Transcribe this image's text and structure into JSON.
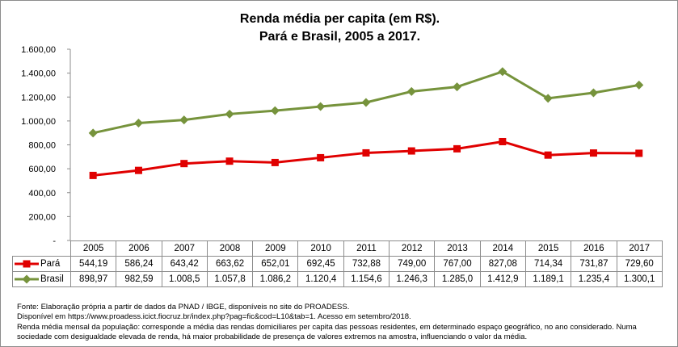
{
  "chart_data": {
    "type": "line",
    "title": [
      "Renda média per capita (em R$).",
      "Pará e Brasil, 2005 a 2017."
    ],
    "categories": [
      "2005",
      "2006",
      "2007",
      "2008",
      "2009",
      "2010",
      "2011",
      "2012",
      "2013",
      "2014",
      "2015",
      "2016",
      "2017"
    ],
    "ylim": [
      0,
      1600
    ],
    "yticks": [
      "-",
      "200,00",
      "400,00",
      "600,00",
      "800,00",
      "1.000,00",
      "1.200,00",
      "1.400,00",
      "1.600,00"
    ],
    "grid": false,
    "legend": "data-table",
    "series": [
      {
        "name": "Pará",
        "color": "#e00000",
        "marker": "square",
        "values": [
          544.19,
          586.24,
          643.42,
          663.62,
          652.01,
          692.45,
          732.88,
          749.0,
          767.0,
          827.08,
          714.34,
          731.87,
          729.6
        ],
        "labels": [
          "544,19",
          "586,24",
          "643,42",
          "663,62",
          "652,01",
          "692,45",
          "732,88",
          "749,00",
          "767,00",
          "827,08",
          "714,34",
          "731,87",
          "729,60"
        ]
      },
      {
        "name": "Brasil",
        "color": "#76933c",
        "marker": "diamond",
        "values": [
          898.97,
          982.59,
          1008.5,
          1057.8,
          1086.2,
          1120.4,
          1154.6,
          1246.3,
          1285.0,
          1412.9,
          1189.1,
          1235.4,
          1300.1
        ],
        "labels": [
          "898,97",
          "982,59",
          "1.008,5",
          "1.057,8",
          "1.086,2",
          "1.120,4",
          "1.154,6",
          "1.246,3",
          "1.285,0",
          "1.412,9",
          "1.189,1",
          "1.235,4",
          "1.300,1"
        ]
      }
    ]
  },
  "notes": [
    "Fonte: Elaboração própria a partir de dados da PNAD / IBGE, disponíveis no site do PROADESS.",
    "Disponível em https://www.proadess.icict.fiocruz.br/index.php?pag=fic&cod=L10&tab=1. Acesso em setembro/2018.",
    "Renda média mensal da população: corresponde a média das rendas domiciliares per capita das pessoas residentes, em determinado espaço geográfico, no ano considerado. Numa",
    "sociedade com desigualdade elevada de renda, há maior probabilidade de presença de valores extremos na amostra, influenciando o valor da média."
  ]
}
